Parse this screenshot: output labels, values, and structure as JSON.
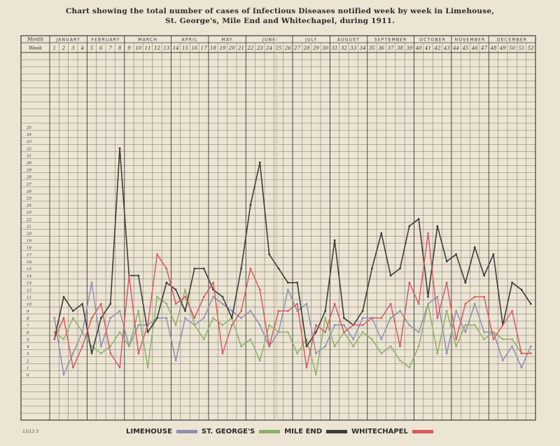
{
  "title_line1": "Chart showing the total number of cases of Infectious Diseases notified week by week in Limehouse,",
  "title_line2": "St. George's, Mile End and Whitechapel, during 1911.",
  "footer_ref": "12/13   3",
  "colors": {
    "grid": "#3a3a3a",
    "limehouse": "#8e8fb6",
    "st_georges": "#8eb06a",
    "mile_end": "#3c3c3c",
    "whitechapel": "#d85a62"
  },
  "chart_data": {
    "type": "line",
    "row_labels": {
      "month": "Month",
      "week": "Week"
    },
    "months": [
      {
        "label": "JANUARY",
        "weeks": 4
      },
      {
        "label": "FEBRUARY",
        "weeks": 4
      },
      {
        "label": "MARCH",
        "weeks": 5
      },
      {
        "label": "APRIL",
        "weeks": 4
      },
      {
        "label": "MAY",
        "weeks": 4
      },
      {
        "label": "JUNE",
        "weeks": 5
      },
      {
        "label": "JULY",
        "weeks": 4
      },
      {
        "label": "AUGUST",
        "weeks": 4
      },
      {
        "label": "SEPTEMBER",
        "weeks": 5
      },
      {
        "label": "OCTOBER",
        "weeks": 4
      },
      {
        "label": "NOVEMBER",
        "weeks": 4
      },
      {
        "label": "DECEMBER",
        "weeks": 5
      }
    ],
    "weeks": [
      "1",
      "2",
      "3",
      "4",
      "5",
      "6",
      "7",
      "8",
      "9",
      "10",
      "11",
      "12",
      "13",
      "14",
      "15",
      "16",
      "17",
      "18",
      "19",
      "20",
      "21",
      "22",
      "23",
      "24",
      "25",
      "26",
      "27",
      "28",
      "29",
      "30",
      "31",
      "32",
      "33",
      "34",
      "35",
      "36",
      "37",
      "38",
      "39",
      "40",
      "41",
      "42",
      "43",
      "44",
      "45",
      "46",
      "47",
      "48",
      "49",
      "50",
      "51",
      "52"
    ],
    "ylim": [
      0,
      35
    ],
    "yticks": [
      "0",
      "1",
      "2",
      "3",
      "4",
      "5",
      "6",
      "7",
      "8",
      "9",
      "10",
      "11",
      "12",
      "13",
      "14",
      "15",
      "16",
      "17",
      "18",
      "19",
      "20",
      "21",
      "22",
      "23",
      "24",
      "25",
      "26",
      "27",
      "28",
      "29",
      "30",
      "31",
      "32",
      "33",
      "34",
      "35"
    ],
    "series": [
      {
        "name": "LIMEHOUSE",
        "values": [
          8,
          0,
          3,
          6,
          13,
          4,
          8,
          9,
          4,
          7,
          7,
          8,
          8,
          2,
          8,
          7,
          8,
          11,
          10,
          9,
          8,
          9,
          7,
          4,
          6,
          12,
          9,
          10,
          3,
          4,
          7,
          7,
          5,
          8,
          8,
          5,
          8,
          9,
          7,
          6,
          10,
          11,
          3,
          9,
          6,
          10,
          6,
          6,
          2,
          4,
          1,
          4
        ]
      },
      {
        "name": "ST. GEORGE'S",
        "values": [
          6,
          5,
          8,
          6,
          4,
          3,
          4,
          6,
          4,
          9,
          1,
          11,
          10,
          7,
          12,
          7,
          5,
          8,
          7,
          8,
          4,
          5,
          2,
          7,
          6,
          6,
          3,
          5,
          0,
          8,
          4,
          6,
          4,
          6,
          5,
          3,
          4,
          2,
          1,
          4,
          10,
          3,
          9,
          4,
          7,
          7,
          5,
          6,
          5,
          5,
          3,
          3
        ]
      },
      {
        "name": "MILE END",
        "values": [
          5,
          11,
          9,
          10,
          3,
          8,
          10,
          32,
          14,
          14,
          6,
          8,
          13,
          12,
          9,
          15,
          15,
          12,
          11,
          8,
          15,
          24,
          30,
          17,
          15,
          13,
          13,
          4,
          6,
          9,
          19,
          8,
          7,
          9,
          15,
          20,
          14,
          15,
          21,
          22,
          11,
          21,
          16,
          17,
          13,
          18,
          14,
          17,
          7,
          13,
          12,
          10
        ]
      },
      {
        "name": "WHITECHAPEL",
        "values": [
          5,
          8,
          1,
          4,
          8,
          10,
          3,
          1,
          14,
          3,
          7,
          17,
          15,
          10,
          11,
          8,
          11,
          13,
          3,
          7,
          9,
          15,
          12,
          4,
          9,
          9,
          10,
          1,
          7,
          6,
          10,
          6,
          7,
          7,
          8,
          8,
          10,
          4,
          13,
          10,
          20,
          8,
          13,
          5,
          10,
          11,
          11,
          5,
          7,
          9,
          3,
          3
        ]
      }
    ]
  }
}
